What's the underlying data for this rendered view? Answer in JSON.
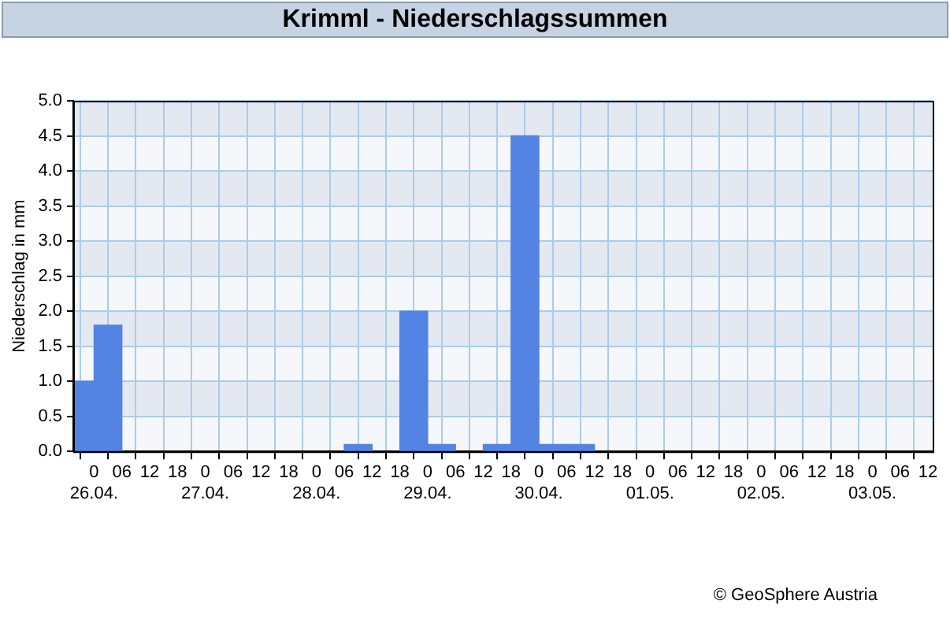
{
  "chart_data": {
    "type": "bar",
    "title": "Krimml - Niederschlagssummen",
    "ylabel": "Niederschlag in mm",
    "x": [
      "--04-25T21:00",
      "--04-26T03:00",
      "--04-28T09:00",
      "--04-28T21:00",
      "--04-29T03:00",
      "--04-29T15:00",
      "--04-29T21:00",
      "--04-30T03:00",
      "--04-30T09:00"
    ],
    "values": [
      1.0,
      1.8,
      0.1,
      2.0,
      0.1,
      0.1,
      4.5,
      0.1,
      0.1
    ],
    "color": "#5383e3",
    "xlim": [
      "--04-25T19:30",
      "--05-03T13:00"
    ],
    "xticks": [
      {
        "value": "--04-26T00:00",
        "label": "0\n26.04."
      },
      {
        "value": "--04-26T06:00",
        "label": "06"
      },
      {
        "value": "--04-26T12:00",
        "label": "12"
      },
      {
        "value": "--04-26T18:00",
        "label": "18"
      },
      {
        "value": "--04-27T00:00",
        "label": "0\n27.04."
      },
      {
        "value": "--04-27T06:00",
        "label": "06"
      },
      {
        "value": "--04-27T12:00",
        "label": "12"
      },
      {
        "value": "--04-27T18:00",
        "label": "18"
      },
      {
        "value": "--04-28T00:00",
        "label": "0\n28.04."
      },
      {
        "value": "--04-28T06:00",
        "label": "06"
      },
      {
        "value": "--04-28T12:00",
        "label": "12"
      },
      {
        "value": "--04-28T18:00",
        "label": "18"
      },
      {
        "value": "--04-29T00:00",
        "label": "0\n29.04."
      },
      {
        "value": "--04-29T06:00",
        "label": "06"
      },
      {
        "value": "--04-29T12:00",
        "label": "12"
      },
      {
        "value": "--04-29T18:00",
        "label": "18"
      },
      {
        "value": "--04-30T00:00",
        "label": "0\n30.04."
      },
      {
        "value": "--04-30T06:00",
        "label": "06"
      },
      {
        "value": "--04-30T12:00",
        "label": "12"
      },
      {
        "value": "--04-30T18:00",
        "label": "18"
      },
      {
        "value": "--05-01T00:00",
        "label": "0\n01.05."
      },
      {
        "value": "--05-01T06:00",
        "label": "06"
      },
      {
        "value": "--05-01T12:00",
        "label": "12"
      },
      {
        "value": "--05-01T18:00",
        "label": "18"
      },
      {
        "value": "--05-02T00:00",
        "label": "0\n02.05."
      },
      {
        "value": "--05-02T06:00",
        "label": "06"
      },
      {
        "value": "--05-02T12:00",
        "label": "12"
      },
      {
        "value": "--05-02T18:00",
        "label": "18"
      },
      {
        "value": "--05-03T00:00",
        "label": "0\n03.05."
      },
      {
        "value": "--05-03T06:00",
        "label": "06"
      },
      {
        "value": "--05-03T12:00",
        "label": "12"
      }
    ],
    "ylim": [
      0,
      5
    ],
    "yticks": [
      {
        "value": 0,
        "label": "0.0"
      },
      {
        "value": 0.5,
        "label": "0.5"
      },
      {
        "value": 1,
        "label": "1.0"
      },
      {
        "value": 1.5,
        "label": "1.5"
      },
      {
        "value": 2,
        "label": "2.0"
      },
      {
        "value": 2.5,
        "label": "2.5"
      },
      {
        "value": 3,
        "label": "3.0"
      },
      {
        "value": 3.5,
        "label": "3.5"
      },
      {
        "value": 4,
        "label": "4.0"
      },
      {
        "value": 4.5,
        "label": "4.5"
      },
      {
        "value": 5,
        "label": "5.0"
      }
    ],
    "grid": true,
    "annotations": [
      "© GeoSphere Austria"
    ]
  }
}
